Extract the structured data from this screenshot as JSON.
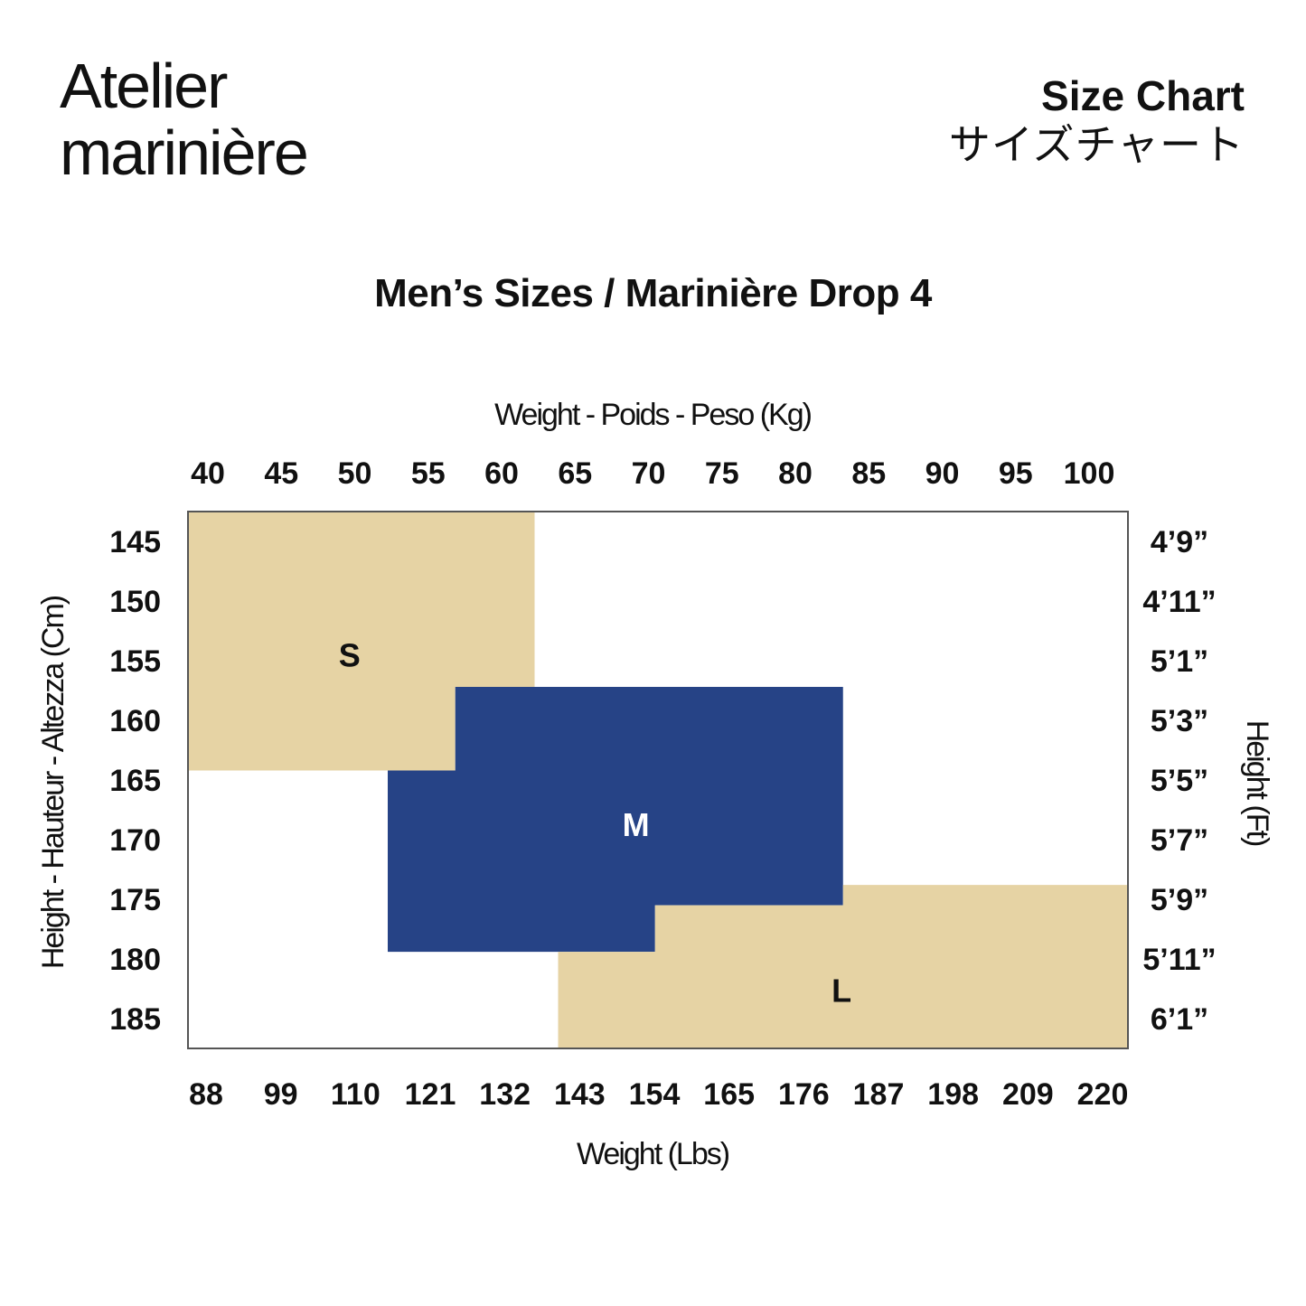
{
  "brand": {
    "line1": "Atelier",
    "line2": "marinière"
  },
  "header": {
    "title_en": "Size Chart",
    "title_jp": "サイズチャート"
  },
  "chart_data": {
    "type": "area",
    "title": "Men’s Sizes / Marinière Drop 4",
    "x_top": {
      "label": "Weight - Poids - Peso (Kg)",
      "ticks": [
        "40",
        "45",
        "50",
        "55",
        "60",
        "65",
        "70",
        "75",
        "80",
        "85",
        "90",
        "95",
        "100"
      ],
      "range": [
        39,
        103
      ]
    },
    "x_bottom": {
      "label": "Weight (Lbs)",
      "ticks": [
        "88",
        "99",
        "110",
        "121",
        "132",
        "143",
        "154",
        "165",
        "176",
        "187",
        "198",
        "209",
        "220"
      ]
    },
    "y_left": {
      "label": "Height - Hauteur - Altezza (Cm)",
      "ticks": [
        "145",
        "150",
        "155",
        "160",
        "165",
        "170",
        "175",
        "180",
        "185"
      ],
      "range": [
        142.5,
        187.5
      ]
    },
    "y_right": {
      "label": "Height (Ft)",
      "ticks": [
        "4’9”",
        "4’11”",
        "5’1”",
        "5’3”",
        "5’5”",
        "5’7”",
        "5’9”",
        "5’11”",
        "6’1”"
      ]
    },
    "colors": {
      "beige": "#E6D3A4",
      "navy": "#264386",
      "frame": "#555555"
    },
    "zones": [
      {
        "label": "S",
        "color": "#E6D3A4",
        "text_color": "#111111",
        "polygon_kg_cm": [
          [
            39,
            142.5
          ],
          [
            62.6,
            142.5
          ],
          [
            62.6,
            157.2
          ],
          [
            57.2,
            157.2
          ],
          [
            57.2,
            164.2
          ],
          [
            39,
            164.2
          ]
        ],
        "label_at": [
          50,
          154.5
        ]
      },
      {
        "label": "M",
        "color": "#264386",
        "text_color": "#ffffff",
        "polygon_kg_cm": [
          [
            57.2,
            157.2
          ],
          [
            83.6,
            157.2
          ],
          [
            83.6,
            175.5
          ],
          [
            70.8,
            175.5
          ],
          [
            70.8,
            179.4
          ],
          [
            52.6,
            179.4
          ],
          [
            52.6,
            164.2
          ],
          [
            57.2,
            164.2
          ]
        ],
        "label_at": [
          69.5,
          168.7
        ]
      },
      {
        "label": "L",
        "color": "#E6D3A4",
        "text_color": "#111111",
        "polygon_kg_cm": [
          [
            83.6,
            173.8
          ],
          [
            103,
            173.8
          ],
          [
            103,
            187.5
          ],
          [
            64.2,
            187.5
          ],
          [
            64.2,
            179.4
          ],
          [
            70.8,
            179.4
          ],
          [
            70.8,
            175.5
          ],
          [
            83.6,
            175.5
          ]
        ],
        "label_at": [
          83.5,
          182.6
        ]
      }
    ]
  }
}
